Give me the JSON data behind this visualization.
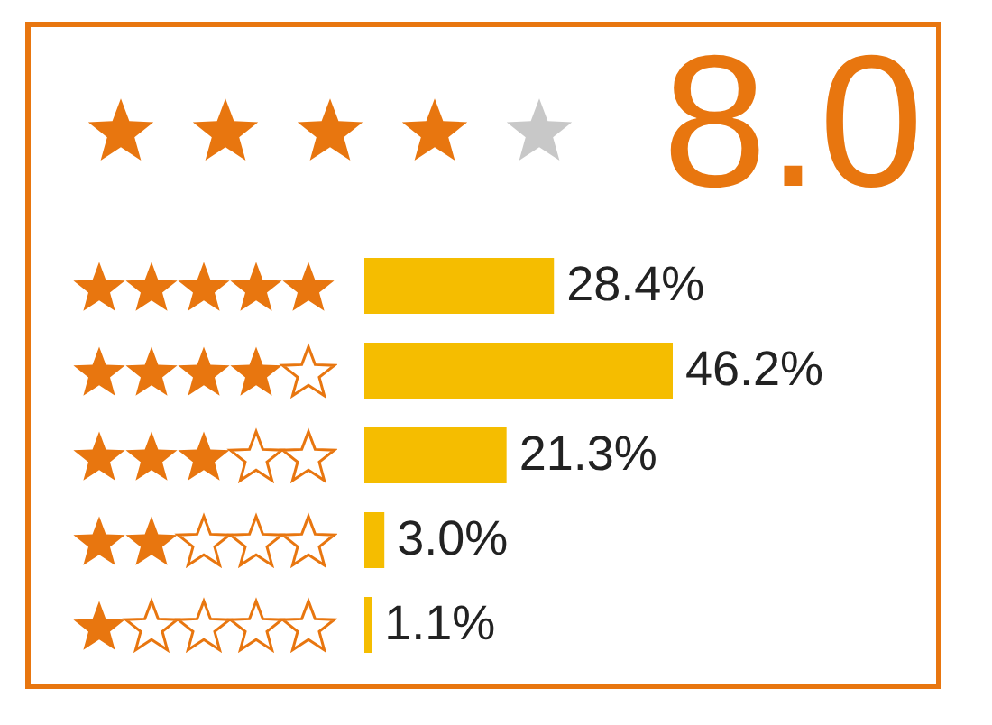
{
  "chart_data": {
    "type": "bar",
    "orientation": "horizontal",
    "title": "8.0",
    "categories": [
      null,
      null,
      null,
      null,
      null
    ],
    "values": [
      28.4,
      46.2,
      21.3,
      3.0,
      1.1
    ],
    "value_labels": [
      "28.4%",
      "46.2%",
      "21.3%",
      "3.0%",
      "1.1%"
    ],
    "color": "#f5bd00"
  }
}
